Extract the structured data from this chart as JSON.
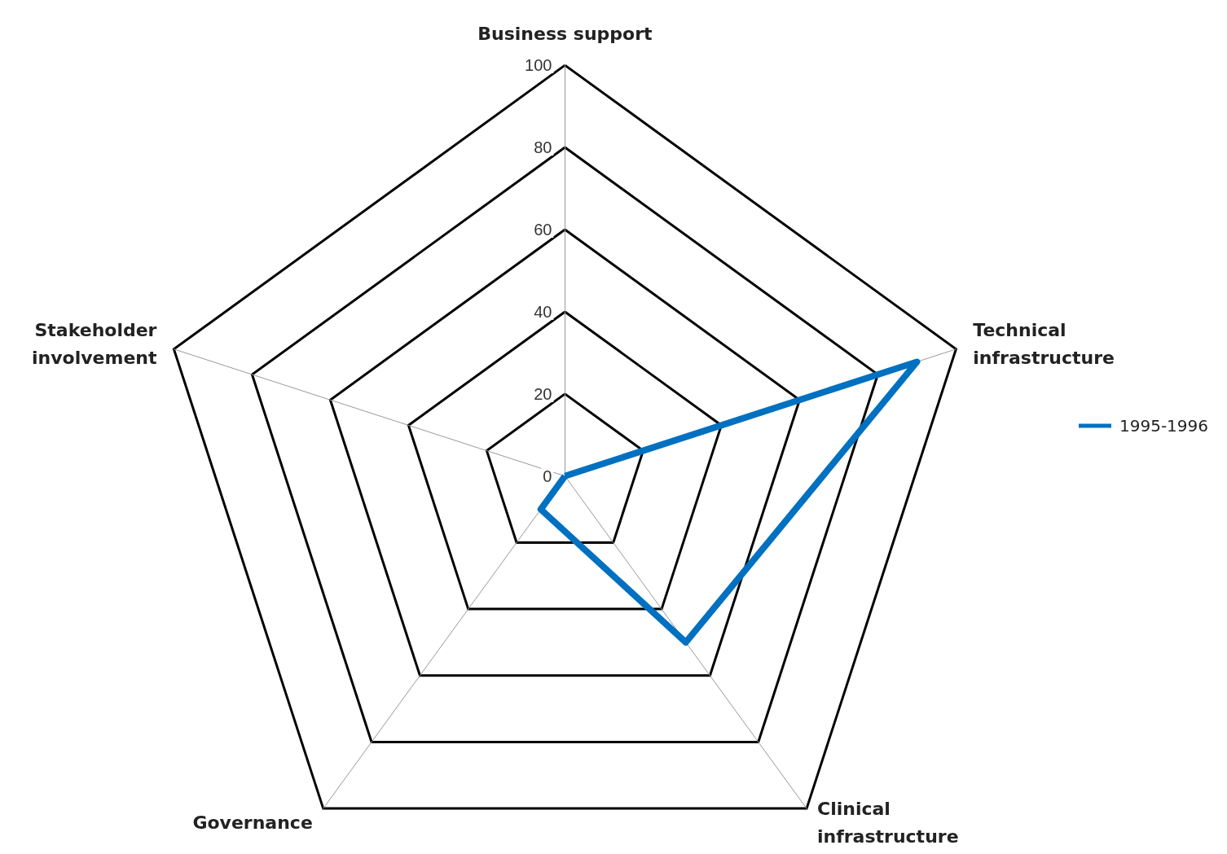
{
  "chart_data": {
    "type": "radar",
    "categories": [
      "Business support",
      "Technical infrastructure",
      "Clinical infrastructure",
      "Governance",
      "Stakeholder involvement"
    ],
    "series": [
      {
        "name": "1995-1996",
        "color": "#0070c0",
        "values": [
          0,
          90,
          50,
          10,
          0
        ]
      }
    ],
    "ylim": [
      0,
      100
    ],
    "yticks": [
      0,
      20,
      40,
      60,
      80,
      100
    ],
    "legend": "right",
    "marker": "none",
    "grid": true
  }
}
